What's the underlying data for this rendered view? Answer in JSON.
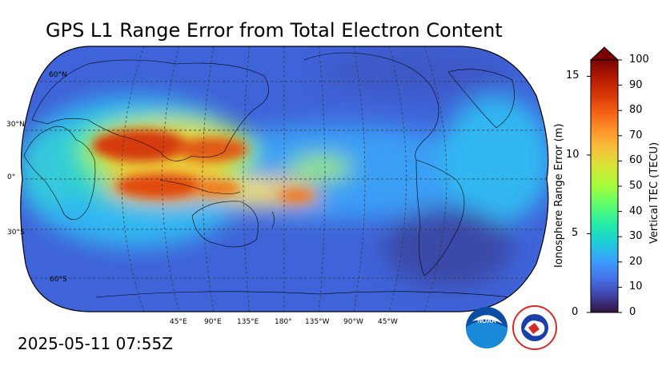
{
  "title": "GPS L1 Range Error from Total Electron Content",
  "timestamp": "2025-05-11 07:55Z",
  "map": {
    "projection": "Robinson",
    "central_longitude": "180°",
    "lat_labels": [
      "60°N",
      "30°N",
      "0°",
      "30°S",
      "60°S"
    ],
    "lon_labels": [
      "45°E",
      "90°E",
      "135°E",
      "180°",
      "135°W",
      "90°W",
      "45°W"
    ]
  },
  "colorbar": {
    "left_label": "Ionosphere Range Error (m)",
    "left_ticks": [
      "0",
      "5",
      "10",
      "15"
    ],
    "right_label": "Vertical TEC (TECU)",
    "right_ticks": [
      "0",
      "10",
      "20",
      "30",
      "40",
      "50",
      "60",
      "70",
      "80",
      "90",
      "100"
    ],
    "colors": [
      "#30123b",
      "#4145ab",
      "#4675ed",
      "#39a2fc",
      "#1bcfd4",
      "#24eca6",
      "#61fc6c",
      "#a4fc3b",
      "#d1e834",
      "#f3c63a",
      "#fe9b2d",
      "#f36315",
      "#d93806",
      "#b11901",
      "#7a0402"
    ]
  },
  "logos": {
    "noaa": "NOAA",
    "nws": "NATIONAL WEATHER SERVICE"
  }
}
